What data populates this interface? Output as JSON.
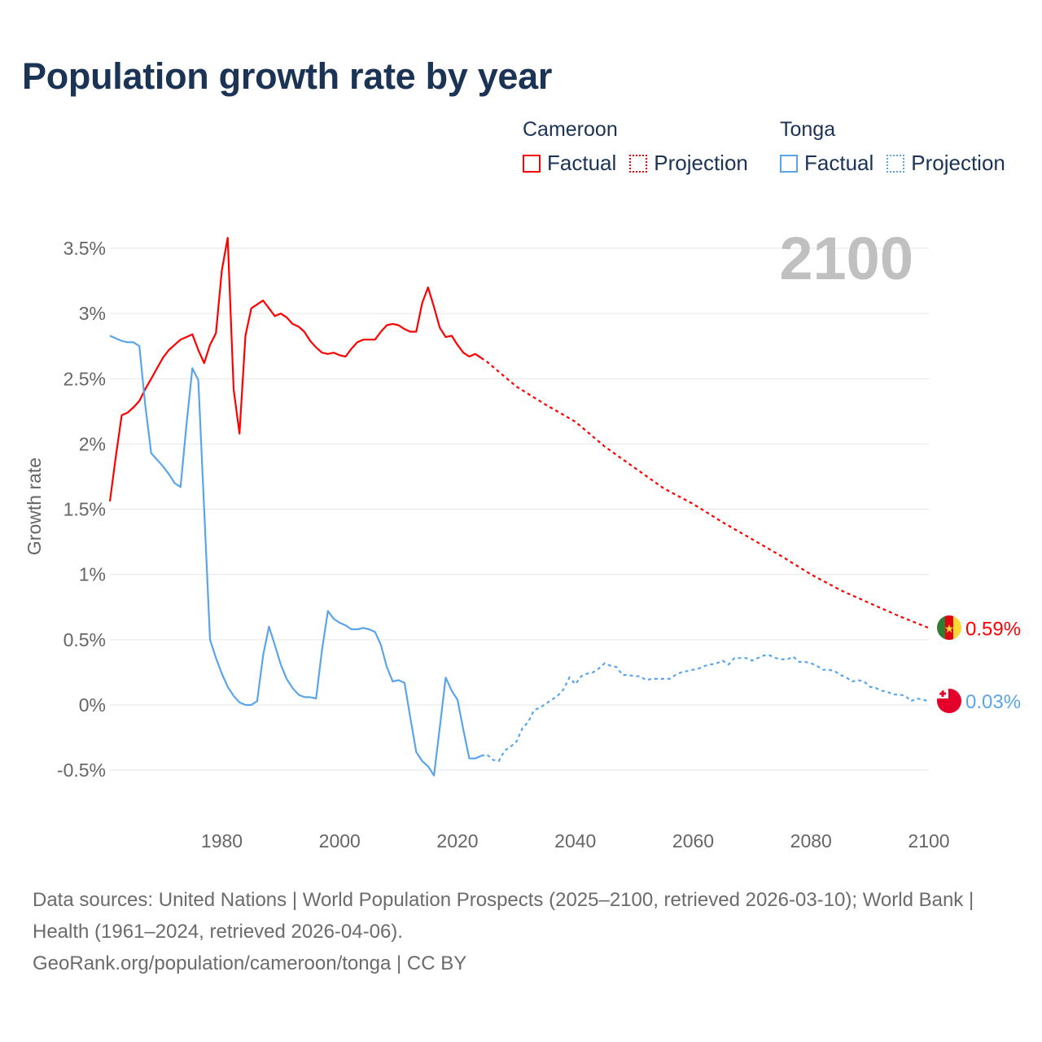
{
  "title": "Population growth rate by year",
  "legend": {
    "groups": [
      {
        "name": "Cameroon",
        "color": "#ff0000",
        "factual": "Factual",
        "projection": "Projection"
      },
      {
        "name": "Tonga",
        "color": "#5aa5ea",
        "factual": "Factual",
        "projection": "Projection"
      }
    ]
  },
  "chart_data": {
    "type": "line",
    "title": "Population growth rate by year",
    "ylabel": "Growth rate",
    "xlabel": "",
    "xlim": [
      1961,
      2100
    ],
    "ylim": [
      -0.75,
      3.75
    ],
    "x_ticks": [
      1980,
      2000,
      2020,
      2040,
      2060,
      2080,
      2100
    ],
    "y_ticks": [
      -0.5,
      0,
      0.5,
      1,
      1.5,
      2,
      2.5,
      3,
      3.5
    ],
    "y_tick_labels": [
      "-0.5%",
      "0%",
      "0.5%",
      "1%",
      "1.5%",
      "2%",
      "2.5%",
      "3%",
      "3.5%"
    ],
    "grid": true,
    "year_label": "2100",
    "series": [
      {
        "name": "Cameroon",
        "color": "#ff0000",
        "end_label": "0.59%",
        "factual": {
          "x_start": 1961,
          "values": [
            1.56,
            1.9,
            2.22,
            2.24,
            2.28,
            2.33,
            2.42,
            2.5,
            2.58,
            2.66,
            2.72,
            2.76,
            2.8,
            2.82,
            2.84,
            2.72,
            2.62,
            2.76,
            2.85,
            3.33,
            3.58,
            2.42,
            2.08,
            2.83,
            3.04,
            3.07,
            3.1,
            3.04,
            2.98,
            3.0,
            2.97,
            2.92,
            2.9,
            2.86,
            2.79,
            2.74,
            2.7,
            2.69,
            2.7,
            2.68,
            2.67,
            2.73,
            2.78,
            2.8,
            2.8,
            2.8,
            2.86,
            2.91,
            2.92,
            2.91,
            2.88,
            2.86,
            2.86,
            3.08,
            3.2,
            3.05,
            2.89,
            2.82,
            2.83,
            2.76,
            2.7,
            2.67,
            2.69,
            2.66
          ]
        },
        "projection": {
          "x": [
            2024,
            2025,
            2030,
            2035,
            2040,
            2045,
            2050,
            2055,
            2060,
            2065,
            2070,
            2075,
            2080,
            2085,
            2090,
            2095,
            2100
          ],
          "values": [
            2.66,
            2.63,
            2.44,
            2.3,
            2.17,
            1.98,
            1.82,
            1.66,
            1.54,
            1.4,
            1.27,
            1.14,
            1.0,
            0.88,
            0.78,
            0.68,
            0.59
          ]
        }
      },
      {
        "name": "Tonga",
        "color": "#5aa5ea",
        "end_label": "0.03%",
        "factual": {
          "x_start": 1961,
          "values": [
            2.83,
            2.81,
            2.79,
            2.78,
            2.78,
            2.75,
            2.3,
            1.93,
            1.88,
            1.83,
            1.77,
            1.7,
            1.67,
            2.15,
            2.58,
            2.49,
            1.5,
            0.5,
            0.36,
            0.24,
            0.14,
            0.07,
            0.02,
            0.0,
            0.0,
            0.03,
            0.38,
            0.6,
            0.46,
            0.31,
            0.2,
            0.13,
            0.08,
            0.06,
            0.06,
            0.05,
            0.42,
            0.72,
            0.66,
            0.63,
            0.61,
            0.58,
            0.58,
            0.59,
            0.58,
            0.56,
            0.46,
            0.29,
            0.18,
            0.19,
            0.17,
            -0.1,
            -0.36,
            -0.43,
            -0.47,
            -0.54,
            -0.17,
            0.21,
            0.11,
            0.04,
            -0.19,
            -0.41,
            -0.41,
            -0.39
          ]
        },
        "projection": {
          "x_start": 2024,
          "values": [
            -0.39,
            -0.38,
            -0.42,
            -0.43,
            -0.35,
            -0.32,
            -0.28,
            -0.18,
            -0.13,
            -0.04,
            -0.02,
            0.01,
            0.04,
            0.07,
            0.12,
            0.21,
            0.16,
            0.22,
            0.24,
            0.25,
            0.28,
            0.32,
            0.3,
            0.29,
            0.23,
            0.23,
            0.22,
            0.22,
            0.19,
            0.2,
            0.2,
            0.2,
            0.2,
            0.23,
            0.25,
            0.26,
            0.27,
            0.28,
            0.3,
            0.31,
            0.32,
            0.34,
            0.31,
            0.36,
            0.36,
            0.36,
            0.34,
            0.36,
            0.38,
            0.38,
            0.36,
            0.35,
            0.35,
            0.37,
            0.33,
            0.33,
            0.32,
            0.3,
            0.27,
            0.27,
            0.26,
            0.23,
            0.21,
            0.18,
            0.19,
            0.18,
            0.14,
            0.13,
            0.11,
            0.1,
            0.08,
            0.08,
            0.07,
            0.03,
            0.05,
            0.04,
            0.03
          ]
        }
      }
    ]
  },
  "footer": {
    "sources": "Data sources: United Nations | World Population Prospects (2025–2100, retrieved 2026-03-10); World Bank | Health (1961–2024, retrieved 2026-04-06).",
    "credit": "GeoRank.org/population/cameroon/tonga | CC BY"
  }
}
